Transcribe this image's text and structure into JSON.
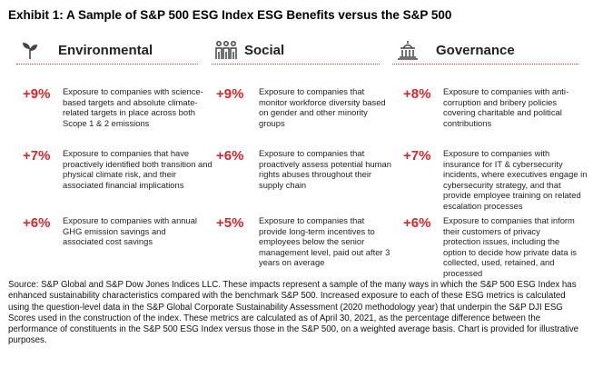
{
  "title": "Exhibit 1: A Sample of S&P 500 ESG Index ESG Benefits versus the S&P 500",
  "colors": {
    "accent": "#d7262b",
    "text": "#222222"
  },
  "columns": [
    {
      "heading": "Environmental",
      "icon": "sprout-icon",
      "metrics": [
        {
          "value": "+9%",
          "text": "Exposure to companies with science-based targets and absolute climate-related targets in place across both Scope 1 & 2 emissions"
        },
        {
          "value": "+7%",
          "text": "Exposure to companies that have proactively identified both transition and physical climate risk, and their associated financial implications"
        },
        {
          "value": "+6%",
          "text": "Exposure to companies with annual GHG emission savings and associated cost savings"
        }
      ]
    },
    {
      "heading": "Social",
      "icon": "people-icon",
      "metrics": [
        {
          "value": "+9%",
          "text": "Exposure to companies that monitor workforce diversity based on gender and other minority groups"
        },
        {
          "value": "+6%",
          "text": "Exposure to companies that proactively assess potential human rights abuses throughout their supply chain"
        },
        {
          "value": "+5%",
          "text": "Exposure to companies that provide long-term incentives to employees below the senior management level, paid out after 3 years on average"
        }
      ]
    },
    {
      "heading": "Governance",
      "icon": "capitol-building-icon",
      "metrics": [
        {
          "value": "+8%",
          "text": "Exposure to companies with anti-corruption and bribery policies covering charitable and political contributions"
        },
        {
          "value": "+7%",
          "text": "Exposure to companies with insurance for IT & cybersecurity incidents, where executives engage in cybersecurity strategy, and that provide employee training on related escalation processes"
        },
        {
          "value": "+6%",
          "text": "Exposure to companies that inform their customers of privacy protection issues, including the option to decide how private data is collected, used, retained, and processed"
        }
      ]
    }
  ],
  "source": "Source: S&P Global and S&P Dow Jones Indices LLC. These impacts represent a sample of the many ways in which the S&P 500 ESG Index has enhanced sustainability characteristics compared with the benchmark S&P 500. Increased exposure to each of these ESG metrics is calculated using the question-level data in the S&P Global Corporate Sustainability Assessment (2020 methodology year) that underpin the S&P DJI ESG Scores used in the construction of the index. These metrics are calculated as of April 30, 2021, as the percentage difference between the performance of constituents in the S&P 500 ESG Index versus those in the S&P 500, on a weighted average basis. Chart is provided for illustrative purposes."
}
